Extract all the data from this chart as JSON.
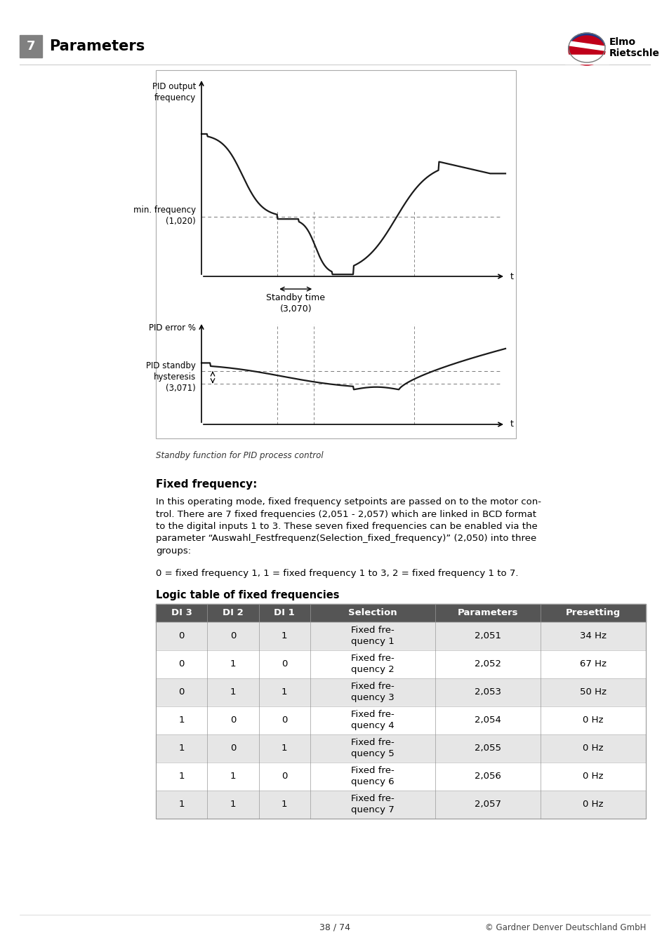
{
  "page_title": "Parameters",
  "chapter_num": "7",
  "chapter_bg": "#808080",
  "logo_text1": "Elmo",
  "logo_text2": "Rietschle",
  "figure_caption": "Standby function for PID process control",
  "section_title": "Fixed frequency:",
  "body_line1": "In this operating mode, fixed frequency setpoints are passed on to the motor con-",
  "body_line2": "trol. There are 7 fixed frequencies (2,051 - 2,057) which are linked in BCD format",
  "body_line3": "to the digital inputs 1 to 3. These seven fixed frequencies can be enabled via the",
  "body_line4": "parameter “Auswahl_Festfrequenz(Selection_fixed_frequency)” (2,050) into three",
  "body_line5": "groups:",
  "body_text2": "0 = fixed frequency 1, 1 = fixed frequency 1 to 3, 2 = fixed frequency 1 to 7.",
  "table_title": "Logic table of fixed frequencies",
  "table_headers": [
    "DI 3",
    "DI 2",
    "DI 1",
    "Selection",
    "Parameters",
    "Presetting"
  ],
  "table_header_bg": "#555555",
  "table_header_color": "#ffffff",
  "table_rows": [
    [
      "0",
      "0",
      "1",
      "Fixed fre-\nquency 1",
      "2,051",
      "34 Hz"
    ],
    [
      "0",
      "1",
      "0",
      "Fixed fre-\nquency 2",
      "2,052",
      "67 Hz"
    ],
    [
      "0",
      "1",
      "1",
      "Fixed fre-\nquency 3",
      "2,053",
      "50 Hz"
    ],
    [
      "1",
      "0",
      "0",
      "Fixed fre-\nquency 4",
      "2,054",
      "0 Hz"
    ],
    [
      "1",
      "0",
      "1",
      "Fixed fre-\nquency 5",
      "2,055",
      "0 Hz"
    ],
    [
      "1",
      "1",
      "0",
      "Fixed fre-\nquency 6",
      "2,056",
      "0 Hz"
    ],
    [
      "1",
      "1",
      "1",
      "Fixed fre-\nquency 7",
      "2,057",
      "0 Hz"
    ]
  ],
  "row_bg_odd": "#e6e6e6",
  "row_bg_even": "#ffffff",
  "footer_page": "38 / 74",
  "footer_copy": "© Gardner Denver Deutschland GmbH",
  "top_chart_ylabel": "PID output\nfrequency",
  "top_chart_minfreq": "min. frequency\n(1,020)",
  "top_chart_standby": "Standby time\n(3,070)",
  "top_chart_t": "t",
  "bottom_chart_ylabel": "PID error %",
  "bottom_chart_hysteresis": "PID standby\nhysteresis\n(3,071)",
  "bottom_chart_t": "t"
}
